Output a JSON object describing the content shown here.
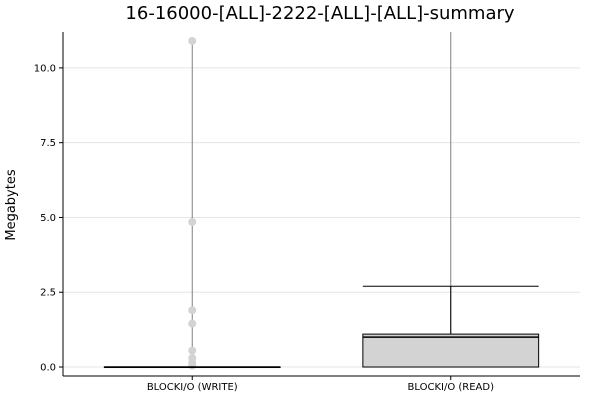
{
  "chart_data": {
    "type": "box",
    "title": "16-16000-[ALL]-2222-[ALL]-[ALL]-summary",
    "xlabel": "",
    "ylabel": "Megabytes",
    "ylim": [
      -0.3,
      11.2
    ],
    "yticks": [
      "0.0",
      "2.5",
      "5.0",
      "7.5",
      "10.0"
    ],
    "grid": true,
    "legend": "none",
    "categories": [
      "BLOCKI/O (WRITE)",
      "BLOCKI/O (READ)"
    ],
    "boxes": [
      {
        "category": "BLOCKI/O (WRITE)",
        "min": 0.0,
        "q1": 0.0,
        "median": 0.0,
        "q3": 0.0,
        "max": 0.0,
        "outliers": [
          10.9,
          4.85,
          1.9,
          1.45,
          0.55,
          0.3,
          0.15,
          0.05
        ],
        "whisker_line_max": 10.9
      },
      {
        "category": "BLOCKI/O (READ)",
        "min": 0.0,
        "q1": 0.0,
        "median": 1.0,
        "q3": 1.1,
        "max": 2.7,
        "outliers": [],
        "whisker_line_max": 11.2
      }
    ],
    "colors": {
      "box_fill": "#d3d3d3",
      "box_stroke": "#000000",
      "outlier": "#d3d3d3",
      "vertical_line": "#808080",
      "grid": "#e5e5e5",
      "axis": "#000000"
    }
  }
}
